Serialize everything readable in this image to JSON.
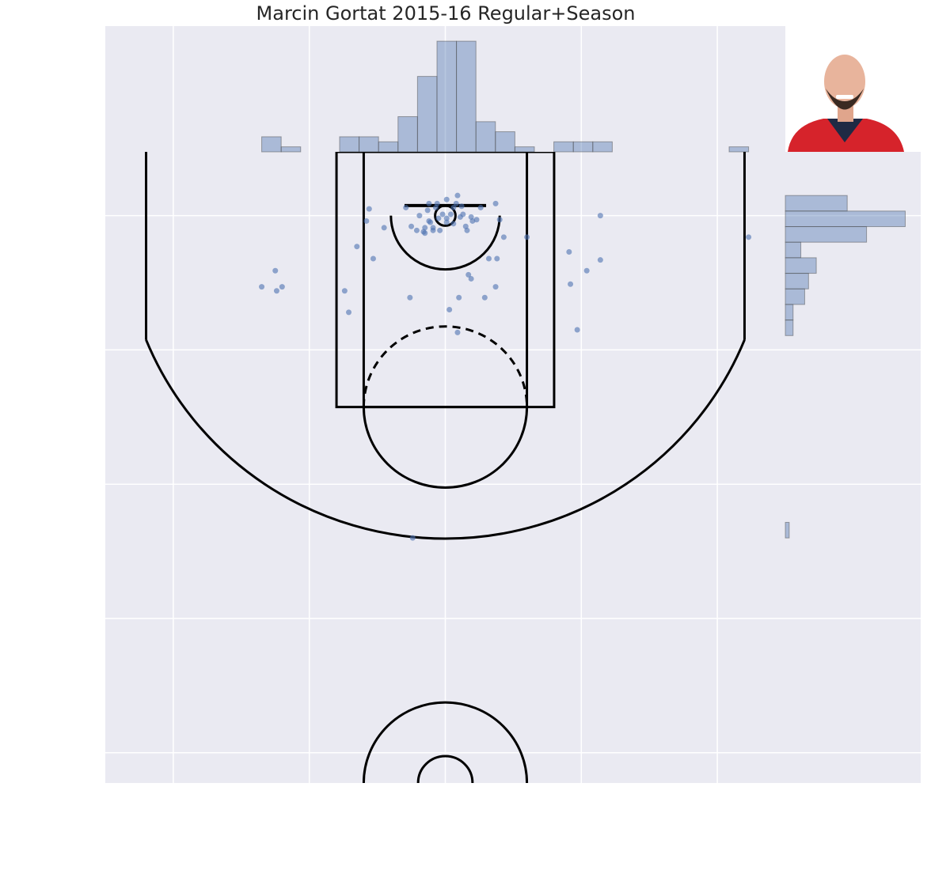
{
  "chart_data": {
    "type": "scatter",
    "title": "Marcin Gortat 2015-16 Regular+Season",
    "color": "#4c72b0",
    "grid": true,
    "xlim": [
      -250,
      250
    ],
    "ylim": [
      422.5,
      -47.5
    ],
    "xticks": [
      -200,
      -100,
      0,
      100,
      200
    ],
    "yticks": [
      0,
      100,
      200,
      300,
      400
    ],
    "x": [
      -56,
      -58,
      -45,
      -65,
      -53,
      -74,
      -71,
      -135,
      -125,
      -120,
      -124,
      -29,
      -19,
      -12,
      -6,
      -7,
      -25,
      -21,
      -16,
      -15,
      -11,
      -9,
      -5,
      -2,
      1,
      4,
      6,
      9,
      8,
      11,
      13,
      15,
      19,
      20,
      23,
      26,
      37,
      40,
      32,
      38,
      17,
      19,
      37,
      29,
      10,
      3,
      9,
      -26,
      43,
      60,
      91,
      104,
      114,
      114,
      92,
      97,
      223,
      -24,
      -15,
      -9,
      1,
      6,
      16,
      12,
      -12,
      -4,
      1,
      -13
    ],
    "y": [
      -5,
      4,
      9,
      23,
      32,
      56,
      72,
      53,
      41,
      53,
      56,
      -6,
      0,
      -9,
      -9,
      -6,
      8,
      11,
      12,
      9,
      5,
      11,
      2,
      -1,
      2,
      -1,
      -6,
      -15,
      -9,
      1,
      -1,
      8,
      1,
      4,
      3,
      -6,
      -9,
      3,
      32,
      32,
      44,
      47,
      53,
      61,
      61,
      70,
      87,
      61,
      16,
      16,
      27,
      41,
      33,
      0,
      51,
      85,
      16,
      240,
      13,
      9,
      5,
      6,
      11,
      -7,
      4,
      11,
      -12,
      -4
    ],
    "x_hist": {
      "bins": [
        -135,
        -120.68,
        -106.36,
        -92.04,
        -77.72,
        -63.4,
        -49.08,
        -34.76,
        -20.44,
        -6.12,
        8.2,
        22.52,
        36.84,
        51.16,
        65.48,
        79.8,
        94.12,
        108.44,
        122.76,
        137.08,
        151.4,
        165.72,
        180.04,
        194.36,
        208.68,
        223
      ],
      "counts": [
        3,
        1,
        0,
        0,
        3,
        3,
        2,
        7,
        15,
        22,
        22,
        6,
        4,
        1,
        0,
        2,
        2,
        2,
        0,
        0,
        0,
        0,
        0,
        0,
        1
      ],
      "ylim": [
        0,
        25
      ]
    },
    "y_hist": {
      "bins": [
        -15,
        -3.41,
        8.18,
        19.77,
        31.36,
        42.95,
        54.55,
        66.14,
        77.73,
        89.32,
        100.91,
        112.5,
        124.09,
        135.68,
        147.27,
        158.86,
        170.45,
        182.05,
        193.64,
        205.23,
        216.82,
        228.41,
        240
      ],
      "counts": [
        16,
        31,
        21,
        4,
        8,
        6,
        5,
        2,
        2,
        0,
        0,
        0,
        0,
        0,
        0,
        0,
        0,
        0,
        0,
        0,
        0,
        1
      ],
      "xlim": [
        0,
        35
      ]
    }
  }
}
